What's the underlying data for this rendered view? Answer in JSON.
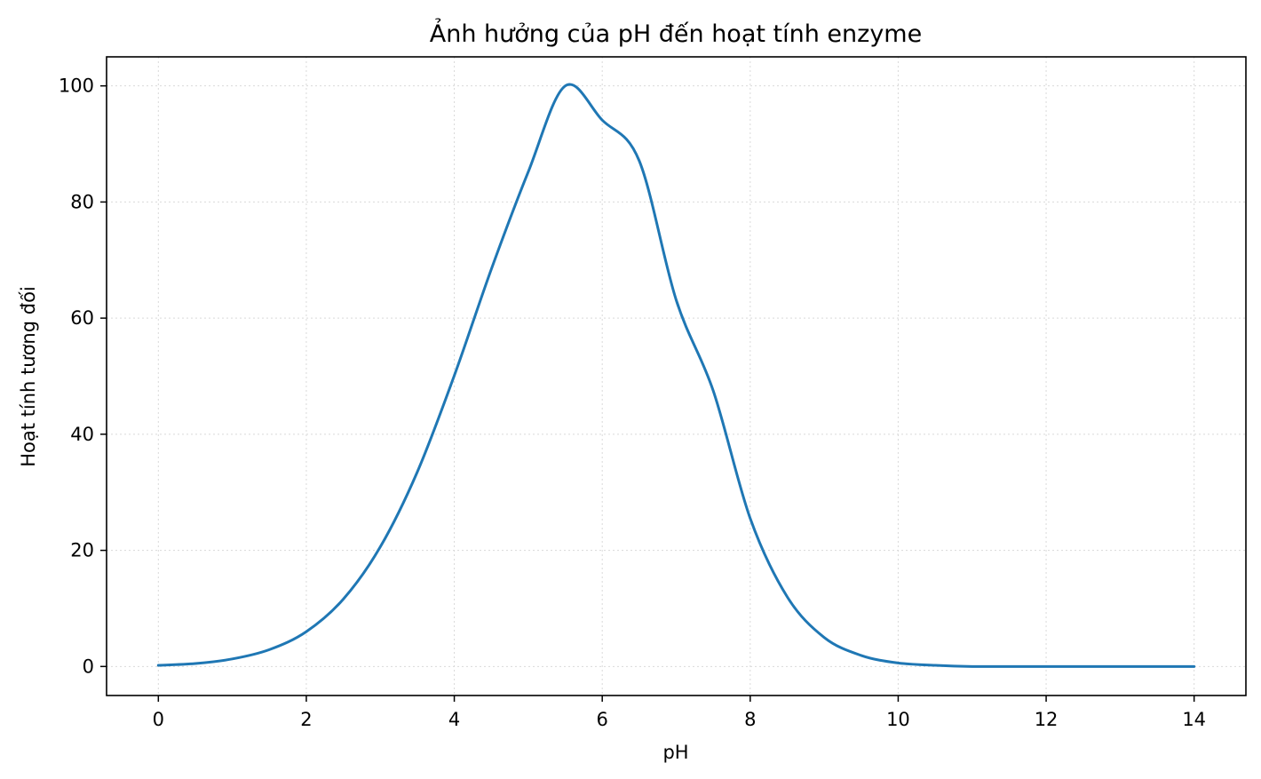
{
  "chart_data": {
    "type": "line",
    "title": "Ảnh hưởng của pH đến hoạt tính enzyme",
    "xlabel": "pH",
    "ylabel": "Hoạt tính tương đối",
    "xlim": [
      -0.7,
      14.7
    ],
    "ylim": [
      -5,
      105
    ],
    "x_ticks": [
      0,
      2,
      4,
      6,
      8,
      10,
      12,
      14
    ],
    "y_ticks": [
      0,
      20,
      40,
      60,
      80,
      100
    ],
    "grid": true,
    "legend": "none",
    "series": [
      {
        "color": "#1f77b4",
        "x": [
          0,
          0.5,
          1,
          1.5,
          2,
          2.5,
          3,
          3.5,
          4,
          4.5,
          5,
          5.5,
          6,
          6.5,
          7,
          7.5,
          8,
          8.5,
          9,
          9.5,
          10,
          10.5,
          11,
          11.5,
          12,
          12.5,
          13,
          13.5,
          14
        ],
        "y": [
          0.2,
          0.5,
          1.3,
          2.9,
          6.0,
          11.6,
          20.6,
          33.5,
          50.1,
          68.4,
          85.2,
          100,
          94.1,
          87.1,
          63.1,
          47.5,
          25.5,
          12.0,
          5.0,
          1.9,
          0.6,
          0.2,
          0.0,
          0.0,
          0.0,
          0.0,
          0.0,
          0.0,
          0.0
        ]
      }
    ]
  }
}
